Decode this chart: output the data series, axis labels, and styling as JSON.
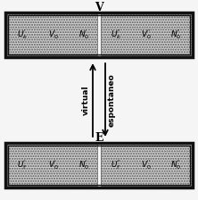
{
  "outer_bg": "#f5f5f5",
  "box_fill": "#d0d0d0",
  "box_edge": "#111111",
  "top_label": "V",
  "bottom_label": "E",
  "arrow_up_label": "virtual",
  "arrow_down_label": "espontaneo",
  "top_left_labels": [
    "U_k'",
    "V_0'",
    "N_0'"
  ],
  "top_right_labels": [
    "U_k''",
    "V_0''",
    "N_0''"
  ],
  "bot_left_labels": [
    "U_f'",
    "V_0'",
    "N_0'"
  ],
  "bot_right_labels": [
    "U_f''",
    "V_0''",
    "N_0''"
  ],
  "figsize": [
    2.22,
    2.24
  ],
  "dpi": 100
}
